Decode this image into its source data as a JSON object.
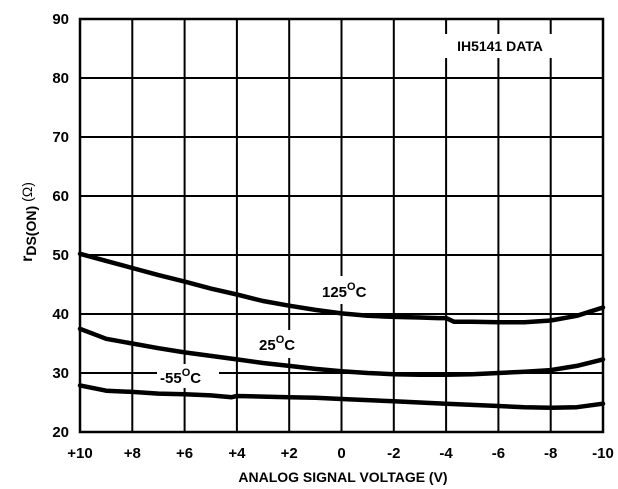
{
  "chart_data": {
    "type": "line",
    "title": "",
    "annotation": "IH5141 DATA",
    "xlabel": "ANALOG SIGNAL VOLTAGE (V)",
    "ylabel": {
      "main": "r",
      "sub": "DS(ON)",
      "unit": "(Ω)"
    },
    "x_ticks": [
      10,
      8,
      6,
      4,
      2,
      0,
      -2,
      -4,
      -6,
      -8,
      -10
    ],
    "x_tick_labels": [
      "+10",
      "+8",
      "+6",
      "+4",
      "+2",
      "0",
      "-2",
      "-4",
      "-6",
      "-8",
      "-10"
    ],
    "xlim": [
      10,
      -10
    ],
    "y_ticks": [
      20,
      30,
      40,
      50,
      60,
      70,
      80,
      90
    ],
    "y_tick_labels": [
      "20",
      "30",
      "40",
      "50",
      "60",
      "70",
      "80",
      "90"
    ],
    "ylim": [
      20,
      90
    ],
    "grid": true,
    "series": [
      {
        "name": "125°C",
        "label_main": "125",
        "label_sup": "O",
        "label_unit": "C",
        "x": [
          10,
          9,
          8,
          7,
          6,
          5,
          4,
          3,
          2,
          1,
          0,
          -1,
          -2,
          -3,
          -3.7,
          -4,
          -4.3,
          -5,
          -6,
          -7,
          -8,
          -9,
          -10
        ],
        "y": [
          50.2,
          49,
          47.8,
          46.6,
          45.5,
          44.3,
          43.3,
          42.2,
          41.4,
          40.7,
          40.1,
          39.7,
          39.5,
          39.4,
          39.3,
          39.3,
          38.7,
          38.7,
          38.6,
          38.6,
          38.9,
          39.7,
          41.1
        ]
      },
      {
        "name": "25°C",
        "label_main": "25",
        "label_sup": "O",
        "label_unit": "C",
        "x": [
          10,
          9,
          8,
          7,
          6,
          5,
          4,
          3,
          2,
          1,
          0,
          -1,
          -2,
          -3,
          -4,
          -5,
          -6,
          -7,
          -8,
          -9,
          -10
        ],
        "y": [
          37.5,
          35.8,
          35,
          34.2,
          33.5,
          32.9,
          32.3,
          31.7,
          31.2,
          30.7,
          30.3,
          30,
          29.8,
          29.7,
          29.7,
          29.8,
          30,
          30.2,
          30.5,
          31.2,
          32.3
        ]
      },
      {
        "name": "-55°C",
        "label_main": "-55",
        "label_sup": "O",
        "label_unit": "C",
        "x": [
          10,
          9,
          8,
          7,
          6,
          5,
          4.2,
          4,
          3,
          2,
          1,
          0,
          -1,
          -2,
          -3,
          -4,
          -5,
          -6,
          -7,
          -8,
          -9,
          -10
        ],
        "y": [
          27.9,
          27,
          26.8,
          26.5,
          26.4,
          26.2,
          25.9,
          26.1,
          26,
          25.9,
          25.8,
          25.6,
          25.4,
          25.2,
          25,
          24.8,
          24.6,
          24.4,
          24.2,
          24.1,
          24.2,
          24.8
        ]
      }
    ]
  }
}
